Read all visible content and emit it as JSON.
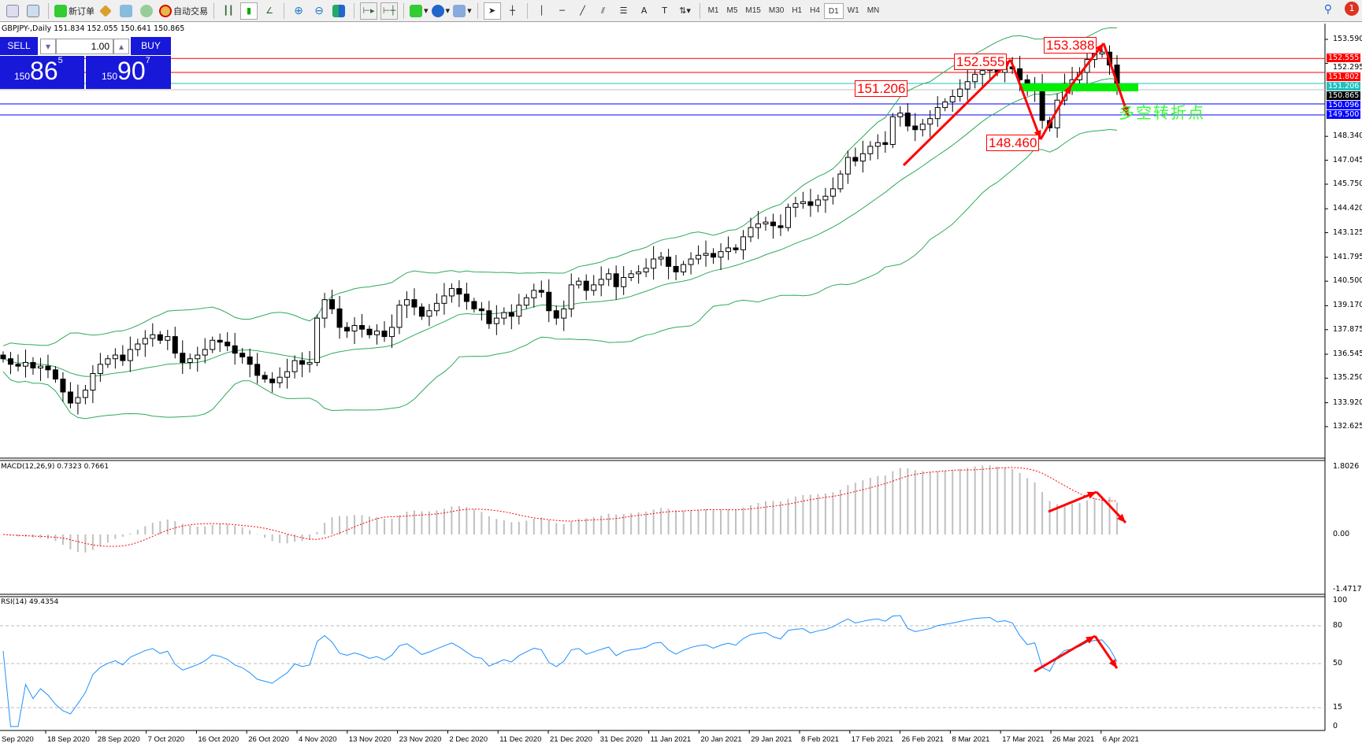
{
  "toolbar": {
    "new_order": "新订单",
    "auto_trading": "自动交易",
    "timeframes": [
      "M1",
      "M5",
      "M15",
      "M30",
      "H1",
      "H4",
      "D1",
      "W1",
      "MN"
    ],
    "active_timeframe": "D1",
    "notification_count": "1"
  },
  "chart_header": "GBPJPY-,Daily  151.834 152.055 150.641 150.865",
  "trade_panel": {
    "sell_label": "SELL",
    "buy_label": "BUY",
    "lot": "1.00",
    "sell_big": "150",
    "sell_main": "86",
    "sell_sup": "5",
    "buy_big": "150",
    "buy_main": "90",
    "buy_sup": "7"
  },
  "annotations": {
    "peak1": "152.555",
    "peak2": "153.388",
    "level": "151.206",
    "trough": "148.460",
    "turning_point": "多空转折点"
  },
  "colors": {
    "up_candle": "#ffffff",
    "down_candle": "#000000",
    "bollinger": "#2eaa5a",
    "macd_hist": "#c0c0c0",
    "macd_signal": "#ff0000",
    "rsi": "#1e90ff",
    "annotation": "#ff0000",
    "zone": "#00ee00",
    "buy_sell": "#1818d8"
  },
  "macd_label": "MACD(12,26,9) 0.7323 0.7661",
  "rsi_label": "RSI(14) 49.4354",
  "chart_data": {
    "type": "candlestick",
    "symbol": "GBPJPY",
    "timeframe": "Daily",
    "close": [
      136.3,
      136.0,
      135.9,
      136.1,
      135.8,
      135.9,
      135.7,
      135.2,
      134.5,
      133.9,
      134.2,
      134.6,
      135.5,
      136.0,
      136.3,
      136.5,
      136.2,
      136.8,
      137.1,
      137.4,
      137.6,
      137.3,
      137.5,
      136.6,
      136.1,
      136.3,
      136.5,
      136.8,
      137.3,
      137.2,
      137.0,
      136.6,
      136.4,
      136.0,
      135.4,
      135.2,
      135.0,
      135.3,
      135.6,
      136.2,
      136.0,
      136.1,
      138.5,
      139.5,
      139.0,
      138.0,
      137.8,
      138.1,
      137.9,
      137.6,
      137.8,
      137.5,
      138.0,
      139.2,
      139.5,
      139.1,
      138.6,
      138.9,
      139.3,
      139.7,
      140.1,
      139.8,
      139.4,
      139.0,
      138.9,
      138.2,
      138.5,
      138.8,
      138.6,
      139.2,
      139.6,
      140.0,
      139.9,
      138.9,
      138.5,
      139.0,
      140.3,
      140.5,
      140.0,
      140.3,
      140.6,
      140.9,
      140.2,
      140.7,
      140.9,
      141.0,
      141.2,
      141.7,
      141.8,
      141.3,
      141.0,
      141.4,
      141.7,
      141.9,
      142.0,
      141.8,
      142.1,
      142.3,
      142.2,
      142.9,
      143.4,
      143.6,
      143.7,
      143.5,
      143.4,
      144.5,
      144.7,
      144.8,
      144.6,
      144.9,
      145.1,
      145.5,
      146.3,
      147.2,
      147.0,
      147.4,
      147.8,
      148.0,
      147.9,
      149.4,
      149.6,
      148.9,
      148.7,
      149.0,
      149.3,
      149.9,
      150.2,
      150.5,
      150.9,
      151.3,
      151.7,
      151.9,
      152.0,
      151.8,
      152.1,
      152.0,
      151.4,
      150.9,
      151.1,
      149.2,
      148.8,
      150.3,
      151.2,
      151.4,
      151.8,
      152.5,
      152.8,
      152.9,
      152.2,
      150.865
    ],
    "last_bar_ohlc": {
      "open": 151.834,
      "high": 152.055,
      "low": 150.641,
      "close": 150.865
    },
    "price_ticks": [
      "153.590",
      "152.295",
      "148.340",
      "147.045",
      "145.750",
      "144.420",
      "143.125",
      "141.795",
      "140.500",
      "139.170",
      "137.875",
      "136.545",
      "135.250",
      "133.920",
      "132.625"
    ],
    "price_range": [
      132.625,
      153.59
    ],
    "date_ticks": [
      "Sep 2020",
      "18 Sep 2020",
      "28 Sep 2020",
      "7 Oct 2020",
      "16 Oct 2020",
      "26 Oct 2020",
      "4 Nov 2020",
      "13 Nov 2020",
      "23 Nov 2020",
      "2 Dec 2020",
      "11 Dec 2020",
      "21 Dec 2020",
      "31 Dec 2020",
      "11 Jan 2021",
      "20 Jan 2021",
      "29 Jan 2021",
      "8 Feb 2021",
      "17 Feb 2021",
      "26 Feb 2021",
      "8 Mar 2021",
      "17 Mar 2021",
      "26 Mar 2021",
      "6 Apr 2021"
    ],
    "hlines": [
      {
        "price": "152.555",
        "color": "#ff0000"
      },
      {
        "price": "151.802",
        "color": "#ff0000"
      },
      {
        "price": "151.206",
        "color": "#20c0c0"
      },
      {
        "price": "150.865",
        "color": "#000000",
        "line": "#c0c0c0"
      },
      {
        "price": "150.096",
        "color": "#0000ff"
      },
      {
        "price": "149.500",
        "color": "#0000ff"
      }
    ],
    "indicators": {
      "bollinger": {
        "period": 20,
        "deviations": 2
      },
      "macd": {
        "fast": 12,
        "slow": 26,
        "signal": 9,
        "value": 0.7323,
        "signal_value": 0.7661,
        "axis": [
          "1.8026",
          "0.00",
          "-1.4717"
        ]
      },
      "rsi": {
        "period": 14,
        "value": 49.4354,
        "axis": [
          "100",
          "80",
          "50",
          "15",
          "0"
        ]
      }
    }
  }
}
